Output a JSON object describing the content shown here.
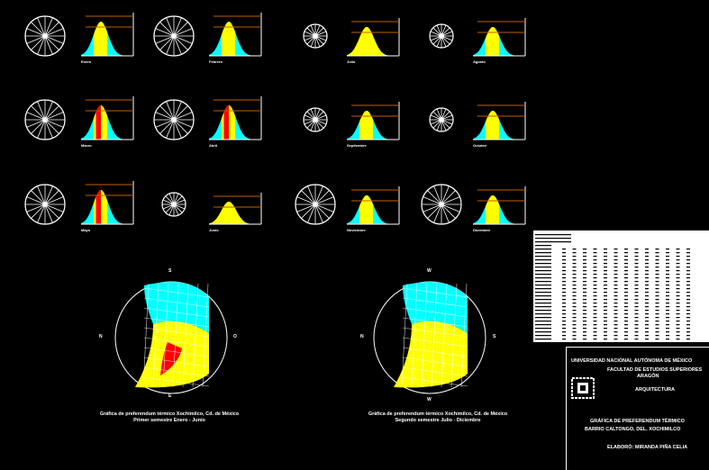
{
  "colors": {
    "cyan": "#00ffff",
    "yellow": "#ffff00",
    "red": "#ff0000",
    "line": "#ffffff",
    "limit": "#c06000",
    "background": "#000000"
  },
  "months": [
    {
      "label": "Enero",
      "red": false
    },
    {
      "label": "Febrero",
      "red": false
    },
    {
      "label": "Marzo",
      "red": true
    },
    {
      "label": "Abril",
      "red": true
    },
    {
      "label": "Mayo",
      "red": true
    },
    {
      "label": "Junio",
      "red": false
    },
    {
      "label": "Julio",
      "red": false
    },
    {
      "label": "Agosto",
      "red": false
    },
    {
      "label": "Septiembre",
      "red": false
    },
    {
      "label": "Octubre",
      "red": false
    },
    {
      "label": "Noviembre",
      "red": false
    },
    {
      "label": "Diciembre",
      "red": false
    }
  ],
  "sun_charts": [
    {
      "top": "S",
      "left": "N",
      "right": "O",
      "bottom": "E",
      "red_zone": true,
      "caption_1": "Gráfica de preferendum térmico Xochimilco, Cd. de México",
      "caption_2": "Primer semestre Enero - Junio"
    },
    {
      "top": "W",
      "left": "N",
      "right": "S",
      "bottom": "W",
      "red_zone": false,
      "caption_1": "Gráfica de preferendum térmico Xochimilco, Cd. de México",
      "caption_2": "Segundo semestre Julio - Diciembre"
    }
  ],
  "title_block": {
    "university": "UNIVERSIDAD NACIONAL AUTÓNOMA DE MÉXICO",
    "faculty": "FACULTAD DE ESTUDIOS SUPERIORES",
    "campus": "ARAGÓN",
    "career": "ARQUITECTURA",
    "title_1": "GRÁFICA DE PREFERENDUM TÉRMICO",
    "title_2": "BARRIO CALTONGO, DEL. XOCHIMILCO",
    "author": "ELABORÓ: MIRANDA PIÑA CELIA"
  }
}
